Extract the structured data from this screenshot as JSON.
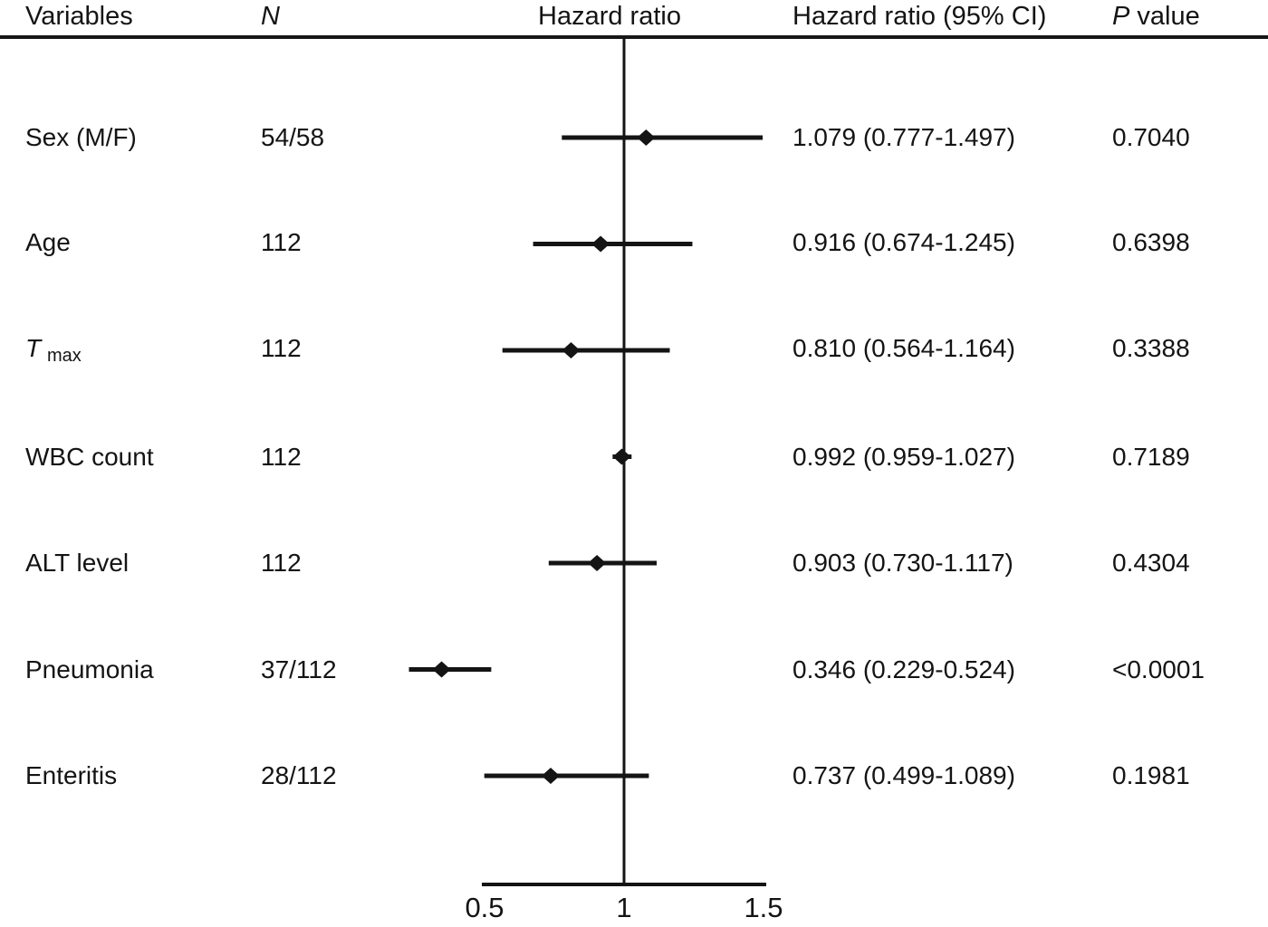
{
  "header": {
    "variables_label": "Variables",
    "n_label": "N",
    "plot_label": "Hazard ratio",
    "hr_ci_label": "Hazard ratio (95% CI)",
    "p_label_italic": "P",
    "p_label_rest": " value"
  },
  "chart_data": {
    "type": "scatter",
    "variant": "forest-plot",
    "title": "",
    "xlabel": "",
    "ylabel": "",
    "x_axis": {
      "min": 0.5,
      "max": 1.5,
      "ticks": [
        "0.5",
        "1",
        "1.5"
      ],
      "tick_values": [
        0.5,
        1,
        1.5
      ],
      "reference_line": 1
    },
    "grid": false,
    "legend": "none",
    "marker_color": "#141414",
    "rows": [
      {
        "variable": "Sex (M/F)",
        "n": "54/58",
        "hr": 1.079,
        "ci_low": 0.777,
        "ci_high": 1.497,
        "hr_ci_text": "1.079 (0.777-1.497)",
        "p_value": "0.7040"
      },
      {
        "variable": "Age",
        "n": "112",
        "hr": 0.916,
        "ci_low": 0.674,
        "ci_high": 1.245,
        "hr_ci_text": "0.916 (0.674-1.245)",
        "p_value": "0.6398"
      },
      {
        "variable": "T",
        "variable_sub": "max",
        "n": "112",
        "hr": 0.81,
        "ci_low": 0.564,
        "ci_high": 1.164,
        "hr_ci_text": "0.810 (0.564-1.164)",
        "p_value": "0.3388"
      },
      {
        "variable": "WBC count",
        "n": "112",
        "hr": 0.992,
        "ci_low": 0.959,
        "ci_high": 1.027,
        "hr_ci_text": "0.992 (0.959-1.027)",
        "p_value": "0.7189"
      },
      {
        "variable": "ALT level",
        "n": "112",
        "hr": 0.903,
        "ci_low": 0.73,
        "ci_high": 1.117,
        "hr_ci_text": "0.903 (0.730-1.117)",
        "p_value": "0.4304"
      },
      {
        "variable": "Pneumonia",
        "n": "37/112",
        "hr": 0.346,
        "ci_low": 0.229,
        "ci_high": 0.524,
        "hr_ci_text": "0.346 (0.229-0.524)",
        "p_value": "<0.0001"
      },
      {
        "variable": "Enteritis",
        "n": "28/112",
        "hr": 0.737,
        "ci_low": 0.499,
        "ci_high": 1.089,
        "hr_ci_text": "0.737 (0.499-1.089)",
        "p_value": "0.1981"
      }
    ]
  }
}
